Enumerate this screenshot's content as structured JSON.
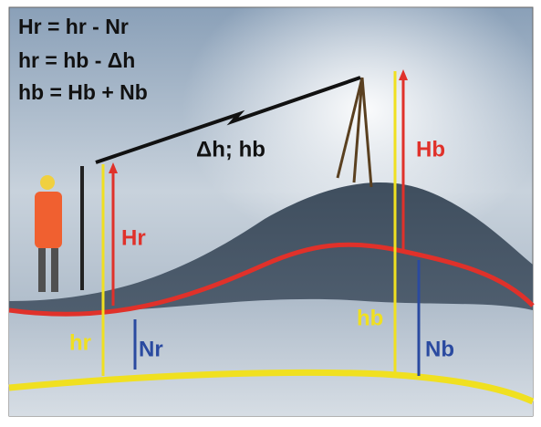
{
  "equations": [
    "Hr = hr - Nr",
    "hr = hb - Δh",
    "hb = Hb + Nb"
  ],
  "labels": {
    "baseline": "Δh; hb",
    "Hr": "Hr",
    "Hb": "Hb",
    "hr": "hr",
    "hb": "hb",
    "Nr": "Nr",
    "Nb": "Nb"
  }
}
